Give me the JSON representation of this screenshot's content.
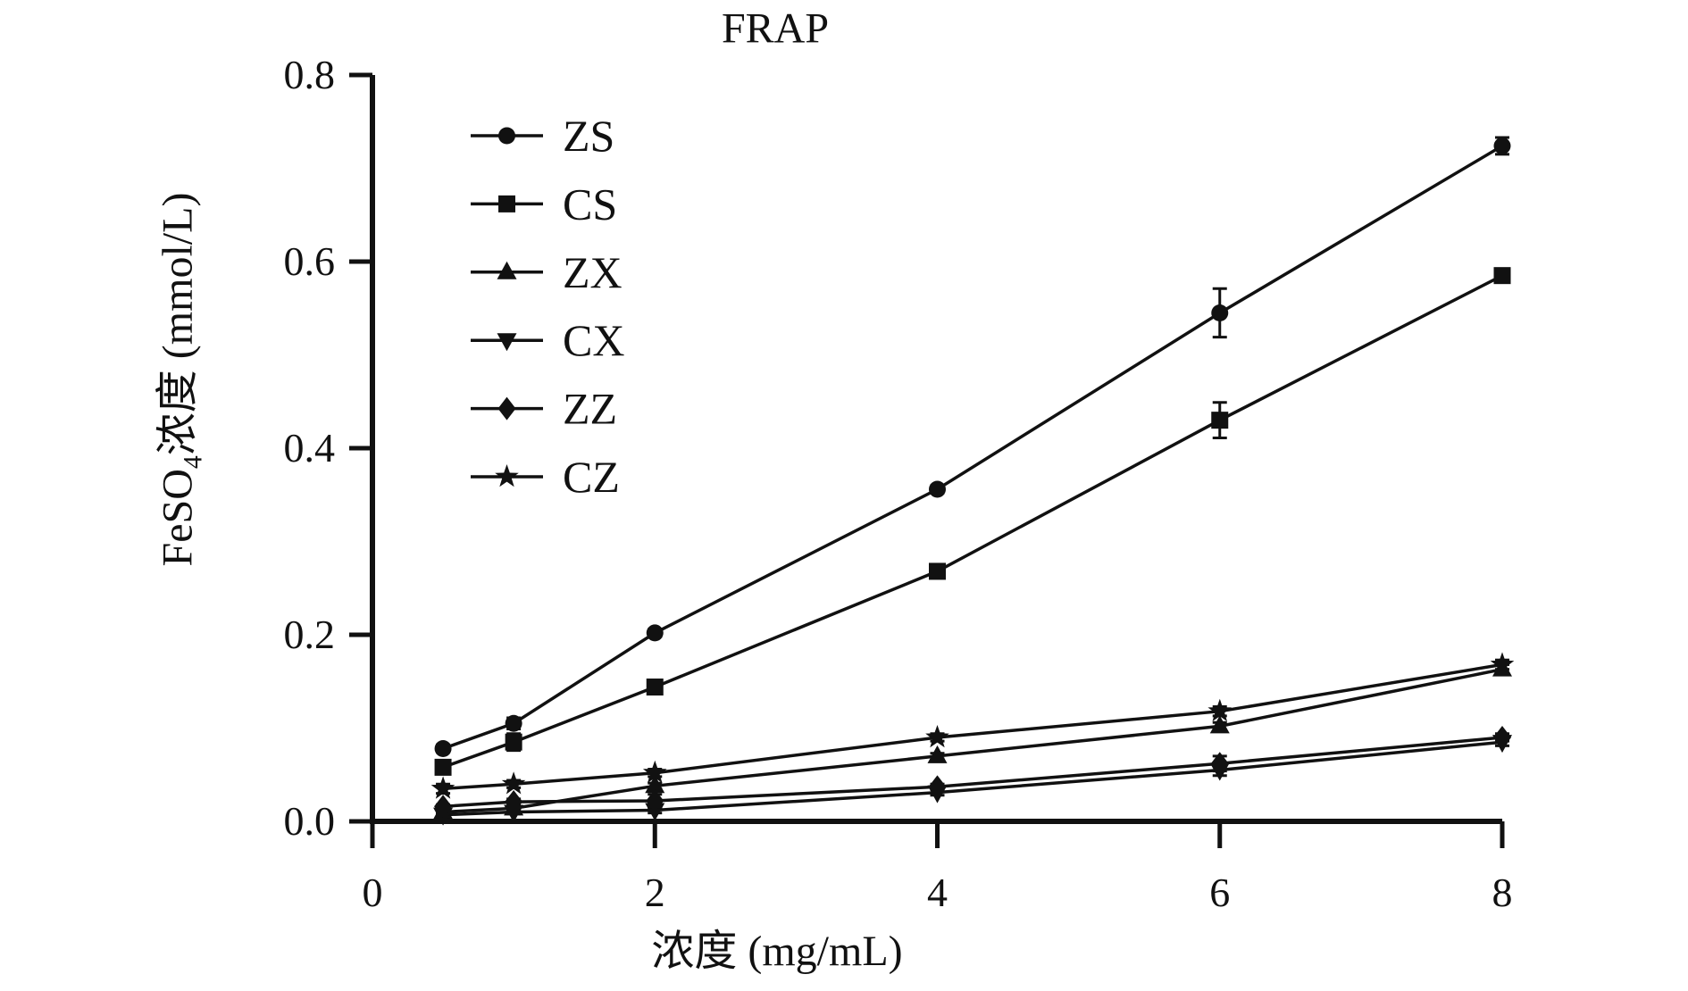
{
  "title": "FRAP",
  "axes": {
    "x": {
      "label": "浓度 (mg/mL)",
      "tick_labels": [
        "0",
        "2",
        "4",
        "6",
        "8"
      ],
      "tick_values": [
        0,
        2,
        4,
        6,
        8
      ],
      "range": [
        0,
        8
      ]
    },
    "y": {
      "label_prefix": "FeSO",
      "label_sub": "4",
      "label_suffix": "浓度 (mmol/L)",
      "tick_labels": [
        "0.0",
        "0.2",
        "0.4",
        "0.6",
        "0.8"
      ],
      "tick_values": [
        0,
        0.2,
        0.4,
        0.6,
        0.8
      ],
      "range": [
        0,
        0.8
      ]
    }
  },
  "colors": {
    "ink": "#111111",
    "background": "#ffffff"
  },
  "chart_data": {
    "type": "line",
    "title": "FRAP",
    "xlabel": "浓度 (mg/mL)",
    "ylabel": "FeSO4浓度 (mmol/L)",
    "x": [
      0.5,
      1,
      2,
      4,
      6,
      8
    ],
    "xlim": [
      0,
      8
    ],
    "ylim": [
      0,
      0.8
    ],
    "grid": false,
    "legend_position": "upper-left-inside",
    "series": [
      {
        "name": "ZS",
        "marker": "circle",
        "values": [
          0.078,
          0.105,
          0.202,
          0.356,
          0.545,
          0.724
        ],
        "errors": [
          0.004,
          0.006,
          0.004,
          0.004,
          0.026,
          0.009
        ]
      },
      {
        "name": "CS",
        "marker": "square",
        "values": [
          0.058,
          0.085,
          0.144,
          0.268,
          0.43,
          0.585
        ],
        "errors": [
          0.004,
          0.009,
          0.005,
          0.004,
          0.019,
          0.005
        ]
      },
      {
        "name": "ZX",
        "marker": "triangle-up",
        "values": [
          0.01,
          0.014,
          0.038,
          0.07,
          0.102,
          0.163
        ],
        "errors": [
          0.002,
          0.002,
          0.003,
          0.003,
          0.004,
          0.005
        ]
      },
      {
        "name": "CX",
        "marker": "triangle-down",
        "values": [
          0.007,
          0.01,
          0.012,
          0.031,
          0.055,
          0.085
        ],
        "errors": [
          0.002,
          0.002,
          0.003,
          0.003,
          0.006,
          0.004
        ]
      },
      {
        "name": "ZZ",
        "marker": "diamond",
        "values": [
          0.016,
          0.021,
          0.022,
          0.037,
          0.062,
          0.09
        ],
        "errors": [
          0.002,
          0.003,
          0.007,
          0.003,
          0.008,
          0.004
        ]
      },
      {
        "name": "CZ",
        "marker": "star",
        "values": [
          0.035,
          0.04,
          0.052,
          0.09,
          0.118,
          0.168
        ],
        "errors": [
          0.005,
          0.004,
          0.004,
          0.004,
          0.005,
          0.005
        ]
      }
    ]
  }
}
